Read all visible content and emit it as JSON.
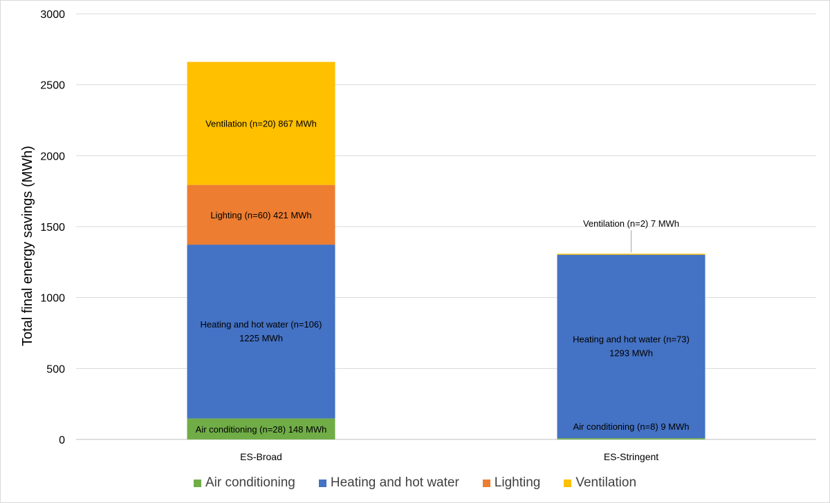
{
  "chart_data": {
    "type": "bar",
    "stacked": true,
    "ylabel": "Total final energy savings (MWh)",
    "xlabel": "",
    "ylim": [
      0,
      3000
    ],
    "yticks": [
      0,
      500,
      1000,
      1500,
      2000,
      2500,
      3000
    ],
    "grid": true,
    "legend_position": "bottom",
    "categories": [
      "ES-Broad",
      "ES-Stringent"
    ],
    "series": [
      {
        "name": "Air conditioning",
        "color": "#70AD47",
        "values": [
          148,
          9
        ],
        "labels": [
          "Air conditioning (n=28) 148 MWh",
          "Air conditioning  (n=8) 9 MWh"
        ]
      },
      {
        "name": "Heating and hot water",
        "color": "#4472C4",
        "values": [
          1225,
          1293
        ],
        "labels": [
          [
            "Heating and hot water (n=106)",
            "1225 MWh"
          ],
          [
            "Heating and hot water (n=73)",
            "1293 MWh"
          ]
        ]
      },
      {
        "name": "Lighting",
        "color": "#ED7D31",
        "values": [
          421,
          0
        ],
        "labels": [
          "Lighting (n=60) 421 MWh",
          null
        ]
      },
      {
        "name": "Ventilation",
        "color": "#FFC000",
        "values": [
          867,
          7
        ],
        "labels": [
          "Ventilation (n=20) 867 MWh",
          "Ventilation (n=2) 7 MWh"
        ]
      }
    ]
  }
}
